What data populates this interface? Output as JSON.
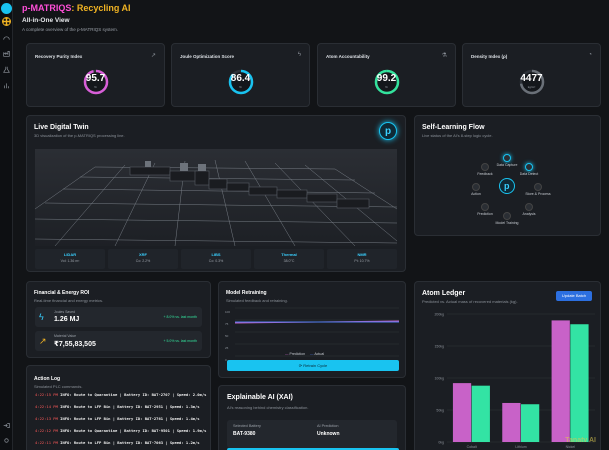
{
  "app": {
    "title_prefix": "p-MATRIQS",
    "title_suffix": ": Recycling AI",
    "view_title": "All-in-One View",
    "view_subtitle": "A complete overview of the p-MATRIQS system."
  },
  "kpis": [
    {
      "title": "Recovery Purity Index",
      "value": "95.7",
      "unit": "%",
      "fraction": 0.957,
      "color": "#d85fd8",
      "icon": "trend-icon"
    },
    {
      "title": "Joule Optimization Score",
      "value": "86.4",
      "unit": "%",
      "fraction": 0.864,
      "color": "#19c3f0",
      "icon": "bolt-icon"
    },
    {
      "title": "Atom Accountability",
      "value": "99.2",
      "unit": "%",
      "fraction": 0.992,
      "color": "#33e39d",
      "icon": "flask-icon"
    },
    {
      "title": "Density Index (ρ)",
      "value": "4477",
      "unit": "kg/m³",
      "fraction": 0.72,
      "color": "#6a7078",
      "icon": "gauge-icon"
    }
  ],
  "twin": {
    "title": "Live Digital Twin",
    "subtitle": "3D visualization of the p-MATRIQS processing line.",
    "metrics": [
      {
        "label": "LIDAR",
        "value": "Vol: 1.36 m³"
      },
      {
        "label": "XRF",
        "value": "Co: 2.2%"
      },
      {
        "label": "LIBS",
        "value": "Co: 0.3%"
      },
      {
        "label": "Thermal",
        "value": "38.0°C"
      },
      {
        "label": "NMR",
        "value": "Pt: 10.7%"
      }
    ]
  },
  "flow": {
    "title": "Self-Learning Flow",
    "subtitle": "Live status of the AI's 8-step logic cycle.",
    "steps": [
      "Data Capture",
      "Data Detect",
      "Store & Process",
      "Analysis",
      "Model Training",
      "Prediction",
      "Action",
      "Feedback"
    ]
  },
  "finance": {
    "title": "Financial & Energy ROI",
    "subtitle": "Real-time financial and energy metrics.",
    "rows": [
      {
        "label": "Joules Saved",
        "value": "1.26 MJ",
        "change": "+ 8.0% vs. last month",
        "icon": "bolt-icon"
      },
      {
        "label": "Material Value",
        "value": "₹7,55,83,505",
        "change": "+ 5.0% vs. last month",
        "icon": "trend-icon"
      }
    ]
  },
  "retrain": {
    "title": "Model Retraining",
    "subtitle": "Simulated feedback and retraining.",
    "y_ticks": [
      "100",
      "75",
      "50",
      "25",
      "0"
    ],
    "legend": [
      "Prediction",
      "Actual"
    ],
    "button": "Retrain Cycle"
  },
  "ledger": {
    "title": "Atom Ledger",
    "subtitle": "Predicted vs. Actual mass of recovered materials (kg).",
    "button": "Update Batch"
  },
  "chart_data": {
    "type": "bar",
    "categories": [
      "Cobalt",
      "Lithium",
      "Nickel"
    ],
    "series": [
      {
        "values": [
          92,
          61,
          190
        ]
      },
      {
        "values": [
          88,
          59,
          184
        ]
      }
    ],
    "y_ticks": [
      "200kg",
      "150kg",
      "100kg",
      "50kg",
      "0kg"
    ],
    "ylim": [
      0,
      200
    ],
    "colors": [
      "#c862c8",
      "#33e3a4"
    ]
  },
  "log": {
    "title": "Action Log",
    "subtitle": "Simulated PLC commands.",
    "lines": [
      {
        "time": "4:22:15 PM",
        "msg": "INFO: Route to Quarantine | Battery ID: BAT-2707 | Speed: 2.0m/s"
      },
      {
        "time": "4:22:14 PM",
        "msg": "INFO: Route to LFP Bin | Battery ID: BAT-2951 | Speed: 1.3m/s"
      },
      {
        "time": "4:22:13 PM",
        "msg": "INFO: Route to LFP Bin | Battery ID: BAT-2761 | Speed: 1.4m/s"
      },
      {
        "time": "4:22:12 PM",
        "msg": "INFO: Route to Quarantine | Battery ID: BAT-9501 | Speed: 1.9m/s"
      },
      {
        "time": "4:22:11 PM",
        "msg": "INFO: Route to LFP Bin | Battery ID: BAT-7063 | Speed: 1.2m/s"
      }
    ]
  },
  "xai": {
    "title": "Explainable AI (XAI)",
    "subtitle": "AI's reasoning behind chemistry classification.",
    "battery_label": "Selected Battery",
    "battery_value": "BAT-9380",
    "prediction_label": "AI Prediction",
    "prediction_value": "Unknown"
  },
  "watermark": "Tanatv AI"
}
